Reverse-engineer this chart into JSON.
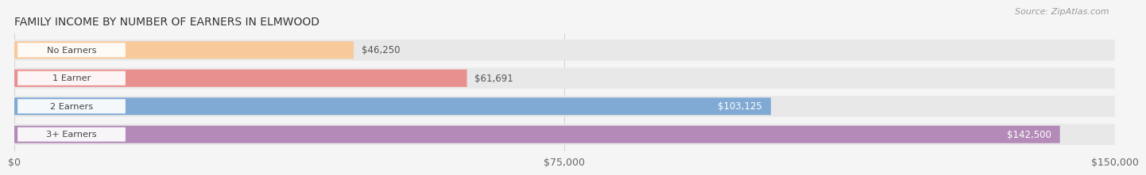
{
  "title": "FAMILY INCOME BY NUMBER OF EARNERS IN ELMWOOD",
  "source": "Source: ZipAtlas.com",
  "categories": [
    "No Earners",
    "1 Earner",
    "2 Earners",
    "3+ Earners"
  ],
  "values": [
    46250,
    61691,
    103125,
    142500
  ],
  "bar_colors": [
    "#f7c99b",
    "#e89090",
    "#80aad4",
    "#b48ab8"
  ],
  "track_color": "#e8e8e8",
  "label_text_colors": [
    "#555555",
    "#555555",
    "#555555",
    "#555555"
  ],
  "value_labels": [
    "$46,250",
    "$61,691",
    "$103,125",
    "$142,500"
  ],
  "value_label_inside": [
    false,
    false,
    true,
    true
  ],
  "xmax": 150000,
  "xticks": [
    0,
    75000,
    150000
  ],
  "xticklabels": [
    "$0",
    "$75,000",
    "$150,000"
  ],
  "background_color": "#f5f5f5"
}
